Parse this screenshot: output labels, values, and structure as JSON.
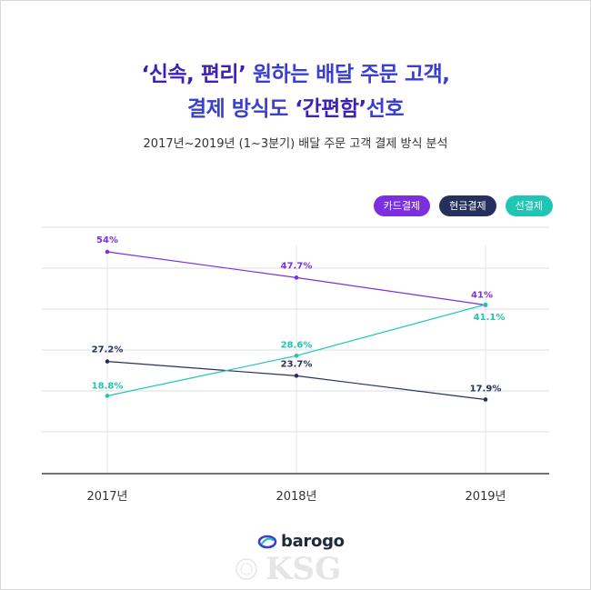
{
  "title": {
    "line1_em": "‘신속, 편리’",
    "line1_rest": " 원하는 배달 주문 고객,",
    "line2_pre": "결제 방식도 ",
    "line2_em": "‘간편함’",
    "line2_post": "선호"
  },
  "subtitle": "2017년~2019년 (1~3분기) 배달 주문 고객 결제 방식 분석",
  "logo": {
    "text": "barogo"
  },
  "watermark": {
    "text": "KSG"
  },
  "colors": {
    "card": "#7b2fe0",
    "cash": "#25305e",
    "simple": "#20c5b3",
    "grid": "#dcdcdc",
    "axis": "#444444"
  },
  "chart_data": {
    "type": "line",
    "title": "2017년~2019년 (1~3분기) 배달 주문 고객 결제 방식 분석",
    "categories": [
      "2017년",
      "2018년",
      "2019년"
    ],
    "ylim": [
      0,
      60
    ],
    "grid": true,
    "legend_position": "top-right",
    "series": [
      {
        "name": "카드결제",
        "color": "#7b2fe0",
        "values": [
          54,
          47.7,
          41
        ],
        "labels": [
          "54%",
          "47.7%",
          "41%"
        ]
      },
      {
        "name": "현금결제",
        "color": "#25305e",
        "values": [
          27.2,
          23.7,
          17.9
        ],
        "labels": [
          "27.2%",
          "23.7%",
          "17.9%"
        ]
      },
      {
        "name": "선결제",
        "color": "#20c5b3",
        "values": [
          18.8,
          28.6,
          41.1
        ],
        "labels": [
          "18.8%",
          "28.6%",
          "41.1%"
        ]
      }
    ]
  }
}
